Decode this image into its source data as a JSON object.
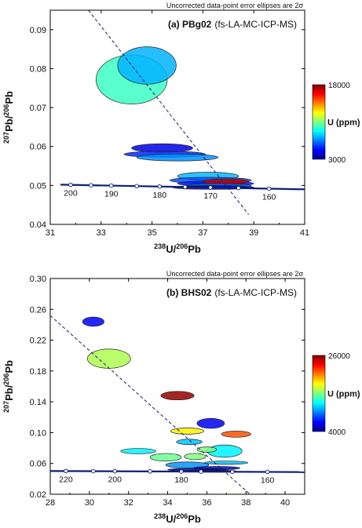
{
  "chart_data": [
    {
      "type": "scatter",
      "note": "Uncorrected data-point error ellipses are 2σ",
      "panel_label": "(a) PBg02",
      "panel_method": "(fs-LA-MC-ICP-MS)",
      "xlabel_sup": "238",
      "xlabel_iso1": "U/",
      "xlabel_sup2": "206",
      "xlabel_iso2": "Pb",
      "ylabel_sup1": "207",
      "ylabel_iso1": "Pb/",
      "ylabel_sup2": "206",
      "ylabel_iso2": "Pb",
      "xlim": [
        31,
        41
      ],
      "ylim": [
        0.04,
        0.095
      ],
      "xticks": [
        31,
        33,
        35,
        37,
        39,
        41
      ],
      "yticks": [
        0.04,
        0.05,
        0.06,
        0.07,
        0.08,
        0.09
      ],
      "concordia": {
        "points": [
          [
            31.4,
            0.0502
          ],
          [
            41,
            0.049
          ]
        ],
        "ages": [
          {
            "label": "200",
            "x": 31.8,
            "y": 0.05012
          },
          {
            "label": "190",
            "x": 33.4,
            "y": 0.05005
          },
          {
            "label": "180",
            "x": 35.3,
            "y": 0.04995
          },
          {
            "label": "170",
            "x": 37.3,
            "y": 0.04975
          },
          {
            "label": "160",
            "x": 39.6,
            "y": 0.0495
          }
        ],
        "markers_x": [
          31.8,
          32.6,
          33.4,
          34.4,
          35.3,
          36.3,
          37.3,
          38.4,
          39.6
        ]
      },
      "discordia": {
        "x1": 32.5,
        "y1": 0.095,
        "x2": 38.8,
        "y2": 0.0425
      },
      "colorbar": {
        "label": "U (ppm)",
        "min": 3000,
        "max": 18000
      },
      "ellipses": [
        {
          "cx": 34.2,
          "cy": 0.0772,
          "rx": 1.4,
          "ry": 0.0063,
          "u": 9500
        },
        {
          "cx": 34.8,
          "cy": 0.0808,
          "rx": 1.15,
          "ry": 0.0048,
          "u": 7500
        },
        {
          "cx": 35.4,
          "cy": 0.0596,
          "rx": 1.2,
          "ry": 0.0011,
          "u": 4500
        },
        {
          "cx": 35.5,
          "cy": 0.058,
          "rx": 1.6,
          "ry": 0.0008,
          "u": 5500
        },
        {
          "cx": 36.0,
          "cy": 0.0572,
          "rx": 1.6,
          "ry": 0.0009,
          "u": 7000
        },
        {
          "cx": 37.2,
          "cy": 0.0524,
          "rx": 1.2,
          "ry": 0.001,
          "u": 7600
        },
        {
          "cx": 37.3,
          "cy": 0.0513,
          "rx": 1.6,
          "ry": 0.0008,
          "u": 6000
        },
        {
          "cx": 37.5,
          "cy": 0.0505,
          "rx": 1.5,
          "ry": 0.0007,
          "u": 5200
        },
        {
          "cx": 37.9,
          "cy": 0.051,
          "rx": 0.9,
          "ry": 0.0007,
          "u": 17000
        },
        {
          "cx": 37.6,
          "cy": 0.0499,
          "rx": 1.3,
          "ry": 0.0006,
          "u": 6500
        },
        {
          "cx": 37.4,
          "cy": 0.0495,
          "rx": 1.6,
          "ry": 0.0005,
          "u": 4000
        }
      ]
    },
    {
      "type": "scatter",
      "note": "Uncorrected data-point error ellipses are 2σ",
      "panel_label": "(b) BHS02",
      "panel_method": "(fs-LA-MC-ICP-MS)",
      "xlabel_sup": "238",
      "xlabel_iso1": "U/",
      "xlabel_sup2": "206",
      "xlabel_iso2": "Pb",
      "ylabel_sup1": "207",
      "ylabel_iso1": "Pb/",
      "ylabel_sup2": "206",
      "ylabel_iso2": "Pb",
      "xlim": [
        28,
        41
      ],
      "ylim": [
        0.02,
        0.3
      ],
      "xticks": [
        28,
        30,
        32,
        34,
        36,
        38,
        40
      ],
      "yticks": [
        0.02,
        0.06,
        0.1,
        0.14,
        0.18,
        0.22,
        0.26,
        0.3
      ],
      "concordia": {
        "points": [
          [
            28,
            0.0502
          ],
          [
            41,
            0.0488
          ]
        ],
        "ages": [
          {
            "label": "220",
            "x": 28.8,
            "y": 0.0501
          },
          {
            "label": "200",
            "x": 31.3,
            "y": 0.0499
          },
          {
            "label": "180",
            "x": 34.7,
            "y": 0.0496
          },
          {
            "label": "160",
            "x": 39.1,
            "y": 0.0492
          }
        ],
        "markers_x": [
          28.8,
          30.2,
          31.3,
          33.1,
          34.7,
          35.7,
          37.3,
          39.1
        ]
      },
      "discordia": {
        "x1": 28,
        "y1": 0.252,
        "x2": 38.2,
        "y2": 0.02
      },
      "colorbar": {
        "label": "U (ppm)",
        "min": 4000,
        "max": 26000
      },
      "ellipses": [
        {
          "cx": 30.2,
          "cy": 0.244,
          "rx": 0.55,
          "ry": 0.006,
          "u": 6500
        },
        {
          "cx": 31.0,
          "cy": 0.196,
          "rx": 1.1,
          "ry": 0.0125,
          "u": 16000
        },
        {
          "cx": 34.5,
          "cy": 0.148,
          "rx": 0.85,
          "ry": 0.0055,
          "u": 25500
        },
        {
          "cx": 36.2,
          "cy": 0.112,
          "rx": 0.7,
          "ry": 0.0065,
          "u": 6500
        },
        {
          "cx": 35.0,
          "cy": 0.102,
          "rx": 0.85,
          "ry": 0.004,
          "u": 18000
        },
        {
          "cx": 37.5,
          "cy": 0.098,
          "rx": 0.75,
          "ry": 0.004,
          "u": 21500
        },
        {
          "cx": 35.1,
          "cy": 0.088,
          "rx": 0.65,
          "ry": 0.0035,
          "u": 11000
        },
        {
          "cx": 32.5,
          "cy": 0.076,
          "rx": 0.9,
          "ry": 0.0035,
          "u": 12000
        },
        {
          "cx": 36.9,
          "cy": 0.076,
          "rx": 0.9,
          "ry": 0.008,
          "u": 12000
        },
        {
          "cx": 36.0,
          "cy": 0.078,
          "rx": 0.5,
          "ry": 0.0035,
          "u": 15000
        },
        {
          "cx": 33.9,
          "cy": 0.068,
          "rx": 0.8,
          "ry": 0.005,
          "u": 14500
        },
        {
          "cx": 35.4,
          "cy": 0.069,
          "rx": 0.55,
          "ry": 0.004,
          "u": 15000
        },
        {
          "cx": 35.0,
          "cy": 0.058,
          "rx": 1.1,
          "ry": 0.004,
          "u": 10000
        },
        {
          "cx": 37.0,
          "cy": 0.061,
          "rx": 1.1,
          "ry": 0.0022,
          "u": 11000
        },
        {
          "cx": 36.5,
          "cy": 0.054,
          "rx": 1.2,
          "ry": 0.0022,
          "u": 5500
        },
        {
          "cx": 35.5,
          "cy": 0.052,
          "rx": 1.5,
          "ry": 0.0018,
          "u": 4500
        },
        {
          "cx": 36.2,
          "cy": 0.05,
          "rx": 1.3,
          "ry": 0.0013,
          "u": 4300
        }
      ]
    }
  ]
}
